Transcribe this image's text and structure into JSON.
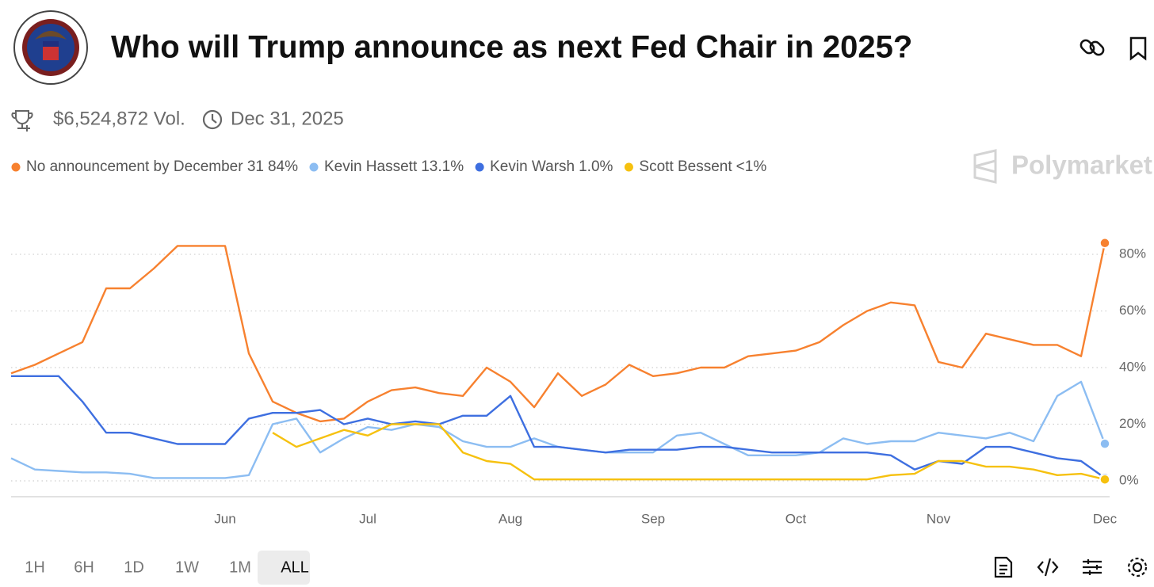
{
  "header": {
    "title": "Who will Trump announce as next Fed Chair in 2025?",
    "volume": "$6,524,872 Vol.",
    "end_date": "Dec 31, 2025",
    "brand": "Polymarket"
  },
  "range_buttons": [
    "1H",
    "6H",
    "1D",
    "1W",
    "1M",
    "ALL"
  ],
  "active_range": "ALL",
  "chart_data": {
    "type": "line",
    "categories": [
      null,
      null,
      null,
      null,
      null,
      null,
      null,
      null,
      null,
      "Jun",
      null,
      null,
      null,
      null,
      null,
      "Jul",
      null,
      null,
      null,
      null,
      null,
      "Aug",
      null,
      null,
      null,
      null,
      null,
      "Sep",
      null,
      null,
      null,
      null,
      null,
      "Oct",
      null,
      null,
      null,
      null,
      null,
      "Nov",
      null,
      null,
      null,
      null,
      null,
      null,
      "Dec"
    ],
    "ylim": [
      -5.6,
      85.9
    ],
    "yticks": [
      {
        "value": 0,
        "label": "0%"
      },
      {
        "value": 20,
        "label": "20%"
      },
      {
        "value": 40,
        "label": "40%"
      },
      {
        "value": 60,
        "label": "60%"
      },
      {
        "value": 80,
        "label": "80%"
      }
    ],
    "grid": true,
    "series": [
      {
        "name": "No announcement by December 31",
        "latest_label": "84%",
        "color": "#f7812f",
        "values": [
          38,
          41,
          45,
          49,
          68,
          68,
          75,
          83,
          83,
          83,
          45,
          28,
          24,
          21,
          22,
          28,
          32,
          33,
          31,
          30,
          40,
          35,
          26,
          38,
          30,
          34,
          41,
          37,
          38,
          40,
          40,
          44,
          45,
          46,
          49,
          55,
          60,
          63,
          62,
          42,
          40,
          52,
          50,
          48,
          48,
          44,
          84
        ]
      },
      {
        "name": "Kevin Hassett",
        "latest_label": "13.1%",
        "color": "#8cbdf2",
        "values": [
          8,
          4,
          3.5,
          3,
          3,
          2.5,
          1,
          1,
          1,
          1,
          2,
          20,
          22,
          10,
          15,
          19,
          18,
          20,
          19,
          14,
          12,
          12,
          15,
          12,
          11,
          10,
          10,
          10,
          16,
          17,
          13,
          9,
          9,
          9,
          10,
          15,
          13,
          14,
          14,
          17,
          16,
          15,
          17,
          14,
          30,
          35,
          13.1
        ]
      },
      {
        "name": "Kevin Warsh",
        "latest_label": "1.0%",
        "color": "#3e6fe0",
        "values": [
          37,
          37,
          37,
          28,
          17,
          17,
          15,
          13,
          13,
          13,
          22,
          24,
          24,
          25,
          20,
          22,
          20,
          21,
          20,
          23,
          23,
          30,
          12,
          12,
          11,
          10,
          11,
          11,
          11,
          12,
          12,
          11,
          10,
          10,
          10,
          10,
          10,
          9,
          4,
          7,
          6,
          12,
          12,
          10,
          8,
          7,
          1.0
        ]
      },
      {
        "name": "Scott Bessent",
        "latest_label": "<1%",
        "color": "#f6c10f",
        "values": [
          null,
          null,
          null,
          null,
          null,
          null,
          null,
          null,
          null,
          null,
          null,
          17,
          12,
          15,
          18,
          16,
          20,
          20,
          20,
          10,
          7,
          6,
          0.5,
          0.5,
          0.5,
          0.5,
          0.5,
          0.5,
          0.5,
          0.5,
          0.5,
          0.5,
          0.5,
          0.5,
          0.5,
          0.5,
          0.5,
          2,
          2.5,
          7,
          7,
          5,
          5,
          4,
          2,
          2.5,
          0.5
        ]
      }
    ]
  }
}
